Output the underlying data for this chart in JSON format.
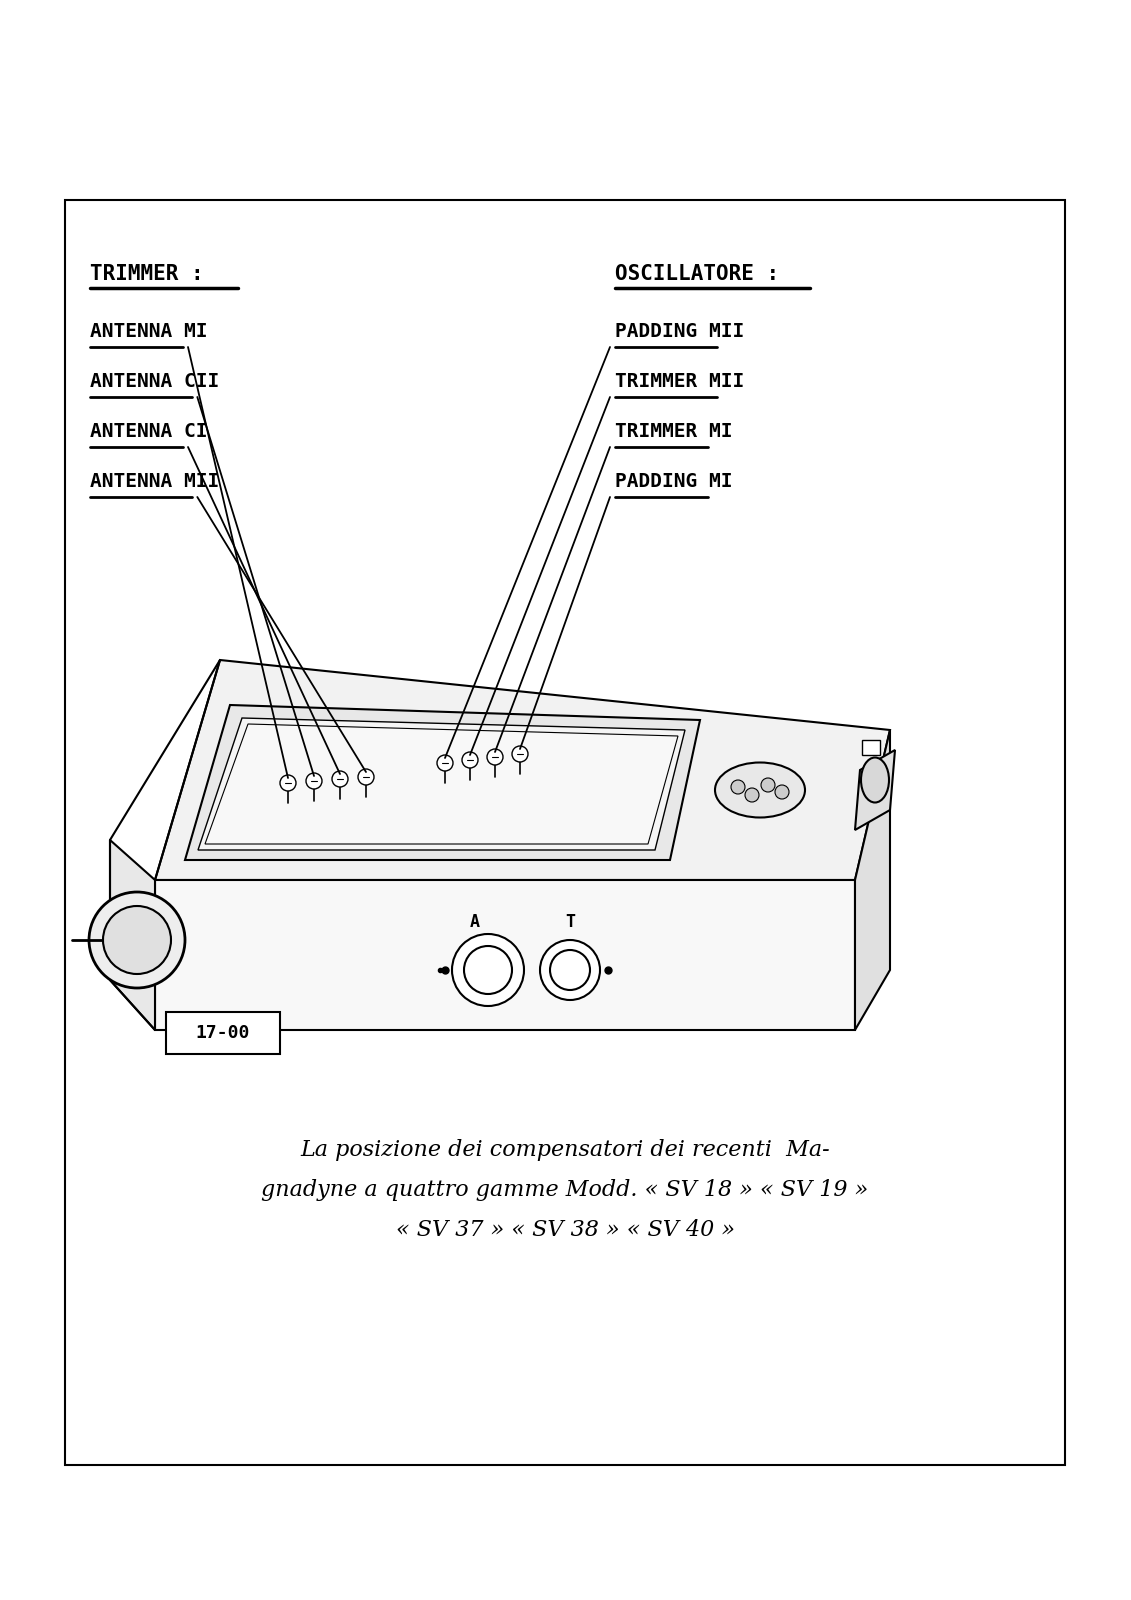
{
  "bg_color": "#ffffff",
  "border_color": "#000000",
  "title_line1": "La posizione dei compensatori dei recenti  Ma-",
  "title_line2": "gnadyne a quattro gamme Modd. « SV 18 » « SV 19 »",
  "title_line3": "« SV 37 » « SV 38 » « SV 40 »",
  "label_trimmer": "TRIMMER :",
  "label_oscillatore": "OSCILLATORE :",
  "left_labels": [
    "ANTENNA MI",
    "ANTENNA CII",
    "ANTENNA CI",
    "ANTENNA MII"
  ],
  "right_labels": [
    "PADDING MII",
    "TRIMMER MII",
    "TRIMMER MI",
    "PADDING MI"
  ],
  "diagram_id": "17-00",
  "text_color": "#000000",
  "line_color": "#000000"
}
